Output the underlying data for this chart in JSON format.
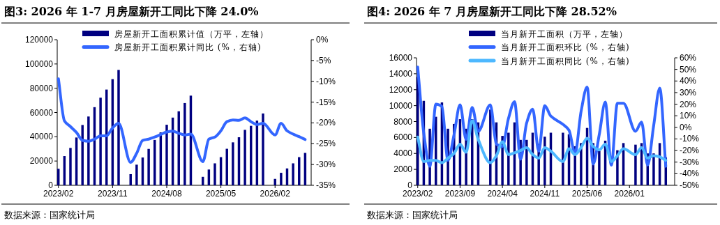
{
  "chart_data": [
    {
      "type": "bar",
      "title": "图3:  2026 年 1-7 月房屋新开工同比下降 24.0%",
      "x": [
        "2023-02",
        "2023-03",
        "2023-04",
        "2023-05",
        "2023-06",
        "2023-07",
        "2023-08",
        "2023-09",
        "2023-10",
        "2023-11",
        "2023-12",
        "2024-02",
        "2024-03",
        "2024-04",
        "2024-05",
        "2024-06",
        "2024-07",
        "2024-08",
        "2024-09",
        "2024-10",
        "2024-11",
        "2024-12",
        "2025-02",
        "2025-03",
        "2025-04",
        "2025-05",
        "2025-06",
        "2025-07",
        "2025-08",
        "2025-09",
        "2025-10",
        "2025-11",
        "2025-12",
        "2026-02",
        "2026-03",
        "2026-04",
        "2026-05",
        "2026-06",
        "2026-07"
      ],
      "series": [
        {
          "name": "房屋新开工面积累计值（万平，左轴）",
          "color": "#000080",
          "values": [
            13600,
            24100,
            30800,
            39400,
            49700,
            56700,
            64400,
            72200,
            78900,
            87500,
            95100,
            9200,
            17000,
            22900,
            30000,
            37400,
            43600,
            49900,
            55800,
            61000,
            67800,
            73900,
            7000,
            13000,
            18100,
            23200,
            30100,
            35400,
            39600,
            45700,
            49000,
            53300,
            59200,
            5300,
            10300,
            13900,
            18100,
            23200,
            26700
          ]
        },
        {
          "name": "房屋新开工面积累计同比 (%，右轴)",
          "type": "line",
          "axis": "y2",
          "color": "#3366ff",
          "x": [
            "2023-02",
            "2023-03",
            "2023-04",
            "2023-05",
            "2023-06",
            "2023-07",
            "2023-08",
            "2023-09",
            "2023-10",
            "2023-11",
            "2023-12",
            "2024-02",
            "2024-03",
            "2024-04",
            "2024-05",
            "2024-06",
            "2024-07",
            "2024-08",
            "2024-09",
            "2024-10",
            "2024-11",
            "2024-12",
            "2025-02",
            "2025-03",
            "2025-04",
            "2025-05",
            "2025-06",
            "2025-07",
            "2025-08",
            "2025-09",
            "2025-10",
            "2025-11",
            "2025-12",
            "2026-02",
            "2026-03",
            "2026-04",
            "2026-05",
            "2026-06",
            "2026-07"
          ],
          "values": [
            -9.4,
            -19.5,
            -20.9,
            -22.3,
            -24.2,
            -24.4,
            -23.9,
            -23.1,
            -23.1,
            -21.2,
            -20.1,
            -29.5,
            -27.3,
            -24.2,
            -23.9,
            -23.4,
            -22.8,
            -22.2,
            -22.0,
            -22.5,
            -22.9,
            -22.7,
            -29.3,
            -23.9,
            -23.4,
            -21.9,
            -19.7,
            -19.3,
            -19.4,
            -18.8,
            -19.7,
            -20.4,
            -20.1,
            -22.9,
            -20.1,
            -21.9,
            -22.7,
            -23.3,
            -24.0
          ]
        }
      ],
      "xlim": [
        "2023-01-25",
        "2026-08"
      ],
      "xticks": [
        {
          "value": "2023-02",
          "label": "2023/02"
        },
        {
          "value": "2023-11",
          "label": "2023/11"
        },
        {
          "value": "2024-08",
          "label": "2024/08"
        },
        {
          "value": "2025-05",
          "label": "2025/05"
        },
        {
          "value": "2026-02",
          "label": "2026/02"
        }
      ],
      "ylim": [
        0,
        120000
      ],
      "yticks": [
        0,
        20000,
        40000,
        60000,
        80000,
        100000,
        120000
      ],
      "y2lim": [
        -35,
        0
      ],
      "y2ticks": [
        {
          "value": 0,
          "label": "0%"
        },
        {
          "value": -5,
          "label": "-5%"
        },
        {
          "value": -10,
          "label": "-10%"
        },
        {
          "value": -15,
          "label": "-15%"
        },
        {
          "value": -20,
          "label": "-20%"
        },
        {
          "value": -25,
          "label": "-25%"
        },
        {
          "value": -30,
          "label": "-30%"
        },
        {
          "value": -35,
          "label": "-35%"
        }
      ],
      "legend": "top",
      "annotations": [
        "数据来源：国家统计局"
      ]
    },
    {
      "type": "bar",
      "title": "图4:  2026 年 7 月房屋新开工同比下降 28.52%",
      "x": [
        "2023-02",
        "2023-03",
        "2023-04",
        "2023-05",
        "2023-06",
        "2023-07",
        "2023-08",
        "2023-09",
        "2023-10",
        "2023-11",
        "2023-12",
        "2024-02",
        "2024-03",
        "2024-04",
        "2024-05",
        "2024-06",
        "2024-07",
        "2024-08",
        "2024-09",
        "2024-10",
        "2024-11",
        "2024-12",
        "2025-02",
        "2025-03",
        "2025-04",
        "2025-05",
        "2025-06",
        "2025-07",
        "2025-08",
        "2025-09",
        "2025-11",
        "2025-12",
        "2026-02",
        "2026-03",
        "2026-04",
        "2026-05",
        "2026-06",
        "2026-07"
      ],
      "series": [
        {
          "name": "当月新开工面积（万平，左轴）",
          "color": "#000080",
          "values": [
            13600,
            10600,
            7100,
            8600,
            10400,
            7100,
            7700,
            8300,
            7100,
            8300,
            7900,
            9500,
            7900,
            6200,
            6600,
            7900,
            5700,
            5700,
            6600,
            5200,
            6100,
            6600,
            6600,
            6400,
            4900,
            5300,
            7200,
            5300,
            4300,
            5600,
            4400,
            5300,
            5100,
            5300,
            4000,
            4000,
            5300,
            3500
          ]
        },
        {
          "name": "当月新开工面积环比 (%，右轴)",
          "type": "line",
          "axis": "y2",
          "color": "#3366ff",
          "x": [
            "2023-02",
            "2023-03",
            "2023-04",
            "2023-05",
            "2023-06",
            "2023-07",
            "2023-08",
            "2023-09",
            "2023-10",
            "2023-11",
            "2023-12",
            "2024-02",
            "2024-03",
            "2024-04",
            "2024-05",
            "2024-06",
            "2024-07",
            "2024-08",
            "2024-09",
            "2024-10",
            "2024-11",
            "2024-12",
            "2025-02",
            "2025-03",
            "2025-04",
            "2025-05",
            "2025-06",
            "2025-07",
            "2025-08",
            "2025-09",
            "2025-10",
            "2025-11",
            "2025-12",
            "2026-02",
            "2026-03",
            "2026-04",
            "2026-05",
            "2026-06",
            "2026-07"
          ],
          "values": [
            52,
            -5,
            -33.6,
            20,
            18,
            -28.5,
            -6.4,
            19.4,
            -10.4,
            17.2,
            -3.4,
            19.4,
            -14.5,
            -16.5,
            7.7,
            22.2,
            -27.5,
            3.7,
            15.7,
            -20.5,
            18.7,
            9.7,
            2.6,
            -2.4,
            -22.5,
            13.7,
            34.8,
            -31.6,
            -6.4,
            21.8,
            -32.6,
            20.8,
            20.8,
            -3.4,
            4.6,
            -32.6,
            1.6,
            33.8,
            -33.6
          ]
        },
        {
          "name": "当月新开工面积同比 (%，右轴)",
          "type": "line",
          "axis": "y2",
          "color": "#4db8ff",
          "x": [
            "2023-02",
            "2023-03",
            "2023-04",
            "2023-05",
            "2023-06",
            "2023-07",
            "2023-08",
            "2023-09",
            "2023-10",
            "2023-11",
            "2023-12",
            "2024-02",
            "2024-03",
            "2024-04",
            "2024-05",
            "2024-06",
            "2024-07",
            "2024-08",
            "2024-09",
            "2024-10",
            "2024-11",
            "2024-12",
            "2025-02",
            "2025-03",
            "2025-04",
            "2025-05",
            "2025-06",
            "2025-07",
            "2025-08",
            "2025-09",
            "2025-10",
            "2025-11",
            "2025-12",
            "2026-02",
            "2026-03",
            "2026-04",
            "2026-05",
            "2026-06",
            "2026-07"
          ],
          "values": [
            -8.4,
            -29.5,
            -28.5,
            -28.5,
            -30.5,
            -26.5,
            -22.5,
            -14.5,
            -21.5,
            5.7,
            -10.4,
            -30.5,
            -24.5,
            -12.5,
            -23.5,
            -22,
            -20,
            -17.5,
            -23.5,
            -26.5,
            -17.5,
            -20.5,
            -29.5,
            -18.5,
            -23.5,
            -17.5,
            -9.4,
            -16.5,
            -19.5,
            -14.5,
            -29.5,
            -24.5,
            -18.5,
            -23.5,
            -17.5,
            -26.5,
            -24.5,
            -25.5,
            -28.5
          ]
        }
      ],
      "xlim": [
        "2023-01-25",
        "2026-08-15"
      ],
      "xticks": [
        {
          "value": "2023-02",
          "label": "2023/02"
        },
        {
          "value": "2023-09",
          "label": "2023/09"
        },
        {
          "value": "2024-04",
          "label": "2024/04"
        },
        {
          "value": "2024-11",
          "label": "2024/11"
        },
        {
          "value": "2025-06",
          "label": "2025/06"
        },
        {
          "value": "2026-01",
          "label": "2026/01"
        }
      ],
      "ylim": [
        0,
        16000
      ],
      "yticks": [
        0,
        2000,
        4000,
        6000,
        8000,
        10000,
        12000,
        14000,
        16000
      ],
      "y2lim": [
        -50,
        60
      ],
      "y2ticks": [
        {
          "value": 60,
          "label": "60%"
        },
        {
          "value": 50,
          "label": "50%"
        },
        {
          "value": 40,
          "label": "40%"
        },
        {
          "value": 30,
          "label": "30%"
        },
        {
          "value": 20,
          "label": "20%"
        },
        {
          "value": 10,
          "label": "10%"
        },
        {
          "value": 0,
          "label": "0%"
        },
        {
          "value": -10,
          "label": "-10%"
        },
        {
          "value": -20,
          "label": "-20%"
        },
        {
          "value": -30,
          "label": "-30%"
        },
        {
          "value": -40,
          "label": "-40%"
        },
        {
          "value": -50,
          "label": "-50%"
        }
      ],
      "legend": "top",
      "annotations": [
        "数据来源：国家统计局"
      ]
    }
  ]
}
